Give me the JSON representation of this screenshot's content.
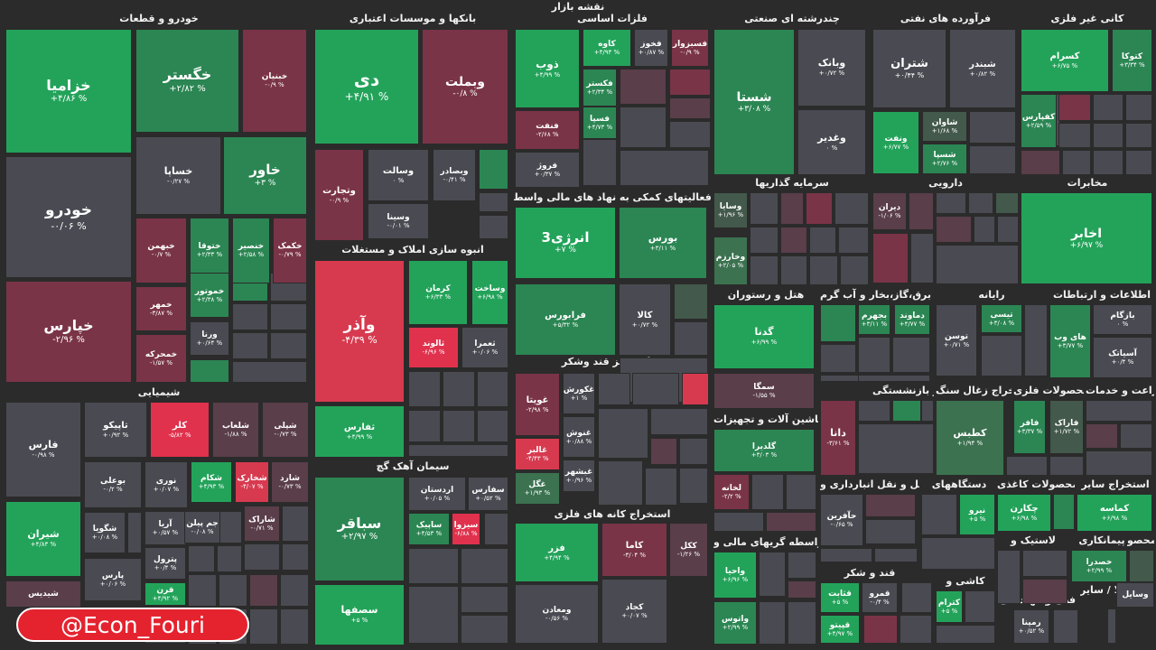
{
  "title": "نقشه بازار",
  "watermark": "@Econ_Fouri",
  "palette": {
    "sg": "#23a35a",
    "g": "#2b8653",
    "mg": "#3c7250",
    "dg": "#43594b",
    "n": "#4a4a52",
    "dr": "#5a3e4a",
    "r": "#7a3447",
    "sr": "#d73a4f",
    "br": "#e0324d"
  },
  "chart_data": {
    "type": "treemap",
    "title": "نقشه بازار",
    "sectors": [
      {
        "name": "خودرو و قطعات",
        "tiles": [
          {
            "n": "خزامیا",
            "v": "+۴/۸۶ %",
            "c": "sg"
          },
          {
            "n": "خگستر",
            "v": "+۲/۸۲ %",
            "c": "g"
          },
          {
            "n": "خبنیان",
            "v": "-۰/۹ %",
            "c": "r"
          },
          {
            "n": "خودرو",
            "v": "-۰/۰۶ %",
            "c": "n"
          },
          {
            "n": "خساپا",
            "v": "-۰/۲۷ %",
            "c": "n"
          },
          {
            "n": "خاور",
            "v": "+۳ %",
            "c": "g"
          },
          {
            "n": "خپارس",
            "v": "-۲/۹۶ %",
            "c": "r"
          },
          {
            "n": "خبهمن",
            "v": "-۰/۷ %",
            "c": "r"
          },
          {
            "n": "ختوقا",
            "v": "+۲/۳۳ %",
            "c": "g"
          },
          {
            "n": "خنصیر",
            "v": "+۲/۵۸ %",
            "c": "g"
          },
          {
            "n": "خکمک",
            "v": "-۰/۷۹ %",
            "c": "r"
          },
          {
            "n": "خمهر",
            "v": "-۳/۸۷ %",
            "c": "r"
          },
          {
            "n": "خموتور",
            "v": "+۲/۳۸ %",
            "c": "g"
          },
          {
            "n": "ورنا",
            "v": "+۰/۶۴ %",
            "c": "n"
          },
          {
            "n": "خمحرکه",
            "v": "-۱/۵۷ %",
            "c": "r"
          }
        ]
      },
      {
        "name": "بانکها و موسسات اعتباری",
        "tiles": [
          {
            "n": "دی",
            "v": "+۴/۹۱ %",
            "c": "sg"
          },
          {
            "n": "وبملت",
            "v": "-۰/۸ %",
            "c": "r"
          },
          {
            "n": "وتجارت",
            "v": "-۰/۹ %",
            "c": "r"
          },
          {
            "n": "وسالت",
            "v": "۰ %",
            "c": "n"
          },
          {
            "n": "وبصادر",
            "v": "-۰/۴۱ %",
            "c": "n"
          },
          {
            "n": "وسینا",
            "v": "-۰/۰۱ %",
            "c": "n"
          }
        ]
      },
      {
        "name": "انبوه سازی املاک و مستغلات",
        "tiles": [
          {
            "n": "وآذر",
            "v": "-۴/۳۹ %",
            "c": "sr"
          },
          {
            "n": "کرمان",
            "v": "+۶/۳۳ %",
            "c": "sg"
          },
          {
            "n": "وساخت",
            "v": "+۶/۹۸ %",
            "c": "sg"
          },
          {
            "n": "ثالوند",
            "v": "-۶/۹۶ %",
            "c": "br"
          },
          {
            "n": "ثعمرا",
            "v": "+۰/۰۶ %",
            "c": "n"
          },
          {
            "n": "ثفارس",
            "v": "+۴/۹۹ %",
            "c": "sg"
          }
        ]
      },
      {
        "name": "سیمان آهک گچ",
        "tiles": [
          {
            "n": "سباقر",
            "v": "+۲/۹۷ %",
            "c": "g"
          },
          {
            "n": "سصفها",
            "v": "+۵ %",
            "c": "sg"
          },
          {
            "n": "اردستان",
            "v": "+۰/۰۵ %",
            "c": "n"
          },
          {
            "n": "سفارس",
            "v": "+۰/۵۲ %",
            "c": "n"
          },
          {
            "n": "ساپیک",
            "v": "+۴/۵۳ %",
            "c": "g"
          },
          {
            "n": "سیزوا",
            "v": "-۶/۸۸ %",
            "c": "br"
          }
        ]
      },
      {
        "name": "فلزات اساسی",
        "tiles": [
          {
            "n": "ذوب",
            "v": "+۴/۹۹ %",
            "c": "sg"
          },
          {
            "n": "کاوه",
            "v": "+۴/۹۳ %",
            "c": "sg"
          },
          {
            "n": "فخوز",
            "v": "+۰/۸۷ %",
            "c": "n"
          },
          {
            "n": "فسبزوار",
            "v": "-۰/۹ %",
            "c": "r"
          },
          {
            "n": "فکستر",
            "v": "+۲/۳۴ %",
            "c": "g"
          },
          {
            "n": "فسپا",
            "v": "+۴/۷۳ %",
            "c": "g"
          },
          {
            "n": "فنفت",
            "v": "-۲/۶۸ %",
            "c": "r"
          },
          {
            "n": "فروژ",
            "v": "+۰/۳۷ %",
            "c": "n"
          }
        ]
      },
      {
        "name": "فعالیتهای کمکی به نهاد های مالی واسط",
        "tiles": [
          {
            "n": "انرژی3",
            "v": "+۷ %",
            "c": "sg"
          },
          {
            "n": "بورس",
            "v": "+۳/۱۱ %",
            "c": "g"
          },
          {
            "n": "فرابورس",
            "v": "+۵/۳۲ %",
            "c": "g"
          },
          {
            "n": "کالا",
            "v": "+۰/۷۲ %",
            "c": "n"
          }
        ]
      },
      {
        "name": "غذایی بجز قند وشکر",
        "tiles": [
          {
            "n": "غویتا",
            "v": "-۲/۹۸ %",
            "c": "r"
          },
          {
            "n": "غکورش",
            "v": "+۱ %",
            "c": "n"
          },
          {
            "n": "غنوش",
            "v": "+۰/۸۸ %",
            "c": "n"
          },
          {
            "n": "غالبر",
            "v": "-۴/۴۳ %",
            "c": "sr"
          },
          {
            "n": "غبشهر",
            "v": "+۰/۹۶ %",
            "c": "n"
          },
          {
            "n": "غگل",
            "v": "+۱/۹۳ %",
            "c": "mg"
          }
        ]
      },
      {
        "name": "استخراج کانه های فلزی",
        "tiles": [
          {
            "n": "فزر",
            "v": "+۴/۹۴ %",
            "c": "sg"
          },
          {
            "n": "کاما",
            "v": "-۳/۰۴ %",
            "c": "r"
          },
          {
            "n": "ککل",
            "v": "-۱/۲۶ %",
            "c": "dr"
          },
          {
            "n": "کجاد",
            "v": "+۰/۰۷ %",
            "c": "n"
          },
          {
            "n": "ومعادن",
            "v": "-۰/۵۶ %",
            "c": "n"
          }
        ]
      },
      {
        "name": "چندرشته ای صنعتی",
        "tiles": [
          {
            "n": "شستا",
            "v": "+۳/۰۸ %",
            "c": "g"
          },
          {
            "n": "وبانک",
            "v": "+۰/۷۲ %",
            "c": "n"
          },
          {
            "n": "وغدیر",
            "v": "۰ %",
            "c": "n"
          }
        ]
      },
      {
        "name": "فرآورده های نفتی",
        "tiles": [
          {
            "n": "شتران",
            "v": "+۰/۴۴ %",
            "c": "n"
          },
          {
            "n": "شبندر",
            "v": "+۰/۸۲ %",
            "c": "n"
          },
          {
            "n": "ونفت",
            "v": "+۶/۷۷ %",
            "c": "sg"
          },
          {
            "n": "شاوان",
            "v": "+۱/۶۸ %",
            "c": "dg"
          },
          {
            "n": "شسپا",
            "v": "+۲/۷۶ %",
            "c": "g"
          }
        ]
      },
      {
        "name": "کانی غیر فلزی",
        "tiles": [
          {
            "n": "کسرام",
            "v": "+۶/۷۵ %",
            "c": "sg"
          },
          {
            "n": "کتوکا",
            "v": "+۳/۳۴ %",
            "c": "g"
          },
          {
            "n": "کفپارس",
            "v": "+۲/۵۹ %",
            "c": "g"
          }
        ]
      },
      {
        "name": "سرمایه گذاریها",
        "tiles": [
          {
            "n": "وسایا",
            "v": "+۱/۹۶ %",
            "c": "dg"
          },
          {
            "n": "وخارزم",
            "v": "+۲/۰۵ %",
            "c": "mg"
          }
        ]
      },
      {
        "name": "دارویی",
        "tiles": [
          {
            "n": "دیران",
            "v": "-۱/۰۶ %",
            "c": "dr"
          }
        ]
      },
      {
        "name": "مخابرات",
        "tiles": [
          {
            "n": "اخابر",
            "v": "+۶/۹۷ %",
            "c": "sg"
          }
        ]
      },
      {
        "name": "هتل و رستوران",
        "tiles": [
          {
            "n": "گدنا",
            "v": "+۶/۹۹ %",
            "c": "sg"
          },
          {
            "n": "سمگا",
            "v": "-۱/۵۵ %",
            "c": "dr"
          }
        ]
      },
      {
        "name": "عرضه برق،گاز،بخار و آب گرم",
        "tiles": [
          {
            "n": "بجهرم",
            "v": "+۳/۱۱ %",
            "c": "g"
          },
          {
            "n": "دماوند",
            "v": "+۴/۷۷ %",
            "c": "g"
          }
        ]
      },
      {
        "name": "رایانه",
        "tiles": [
          {
            "n": "تیسی",
            "v": "+۳/۰۸ %",
            "c": "g"
          },
          {
            "n": "توسن",
            "v": "+۰/۷۱ %",
            "c": "n"
          }
        ]
      },
      {
        "name": "اطلاعات و ارتباطات",
        "tiles": [
          {
            "n": "های وب",
            "v": "+۳/۷۷ %",
            "c": "g"
          },
          {
            "n": "بازگام",
            "v": "۰ %",
            "c": "n"
          },
          {
            "n": "آسیاتک",
            "v": "+۰/۴ %",
            "c": "n"
          }
        ]
      },
      {
        "name": "ماشین آلات و تجهیزات",
        "tiles": [
          {
            "n": "گلدیرا",
            "v": "+۳/۰۳ %",
            "c": "g"
          },
          {
            "n": "لخانه",
            "v": "-۲/۲ %",
            "c": "r"
          }
        ]
      },
      {
        "name": "بیمه و بازنشستگی",
        "tiles": [
          {
            "n": "دانا",
            "v": "-۳/۶۱ %",
            "c": "r"
          }
        ]
      },
      {
        "name": "استخراج زغال سنگ",
        "tiles": [
          {
            "n": "کطبس",
            "v": "+۱/۹۴ %",
            "c": "mg"
          }
        ]
      },
      {
        "name": "محصولات فلزی",
        "tiles": [
          {
            "n": "فافر",
            "v": "+۳/۳۷ %",
            "c": "g"
          },
          {
            "n": "فاراک",
            "v": "+۱/۷۲ %",
            "c": "dg"
          }
        ]
      },
      {
        "name": "زراعت و خدمات",
        "tiles": []
      },
      {
        "name": "حمل و نقل انبارداری و",
        "tiles": [
          {
            "n": "حآفرین",
            "v": "-۰/۶۵ %",
            "c": "n"
          }
        ]
      },
      {
        "name": "دستگاههای",
        "tiles": [
          {
            "n": "نیرو",
            "v": "+۵ %",
            "c": "sg"
          }
        ]
      },
      {
        "name": "محصولات کاغذی",
        "tiles": [
          {
            "n": "چکارن",
            "v": "+۶/۹۸ %",
            "c": "sg"
          }
        ]
      },
      {
        "name": "استخراج سایر",
        "tiles": [
          {
            "n": "کماسه",
            "v": "+۶/۹۸ %",
            "c": "sg"
          }
        ]
      },
      {
        "name": "واسطه گریهای مالی و",
        "tiles": [
          {
            "n": "واحیا",
            "v": "+۶/۹۶ %",
            "c": "sg"
          },
          {
            "n": "واتوس",
            "v": "+۲/۹۹ %",
            "c": "g"
          }
        ]
      },
      {
        "name": "قند و شکر",
        "tiles": [
          {
            "n": "قثابت",
            "v": "+۵ %",
            "c": "sg"
          },
          {
            "n": "قمرو",
            "v": "-۰/۴ %",
            "c": "n"
          },
          {
            "n": "قپیتو",
            "v": "+۴/۹۷ %",
            "c": "sg"
          }
        ]
      },
      {
        "name": "کاشی و",
        "tiles": [
          {
            "n": "کترام",
            "v": "+۵ %",
            "c": "sg"
          }
        ]
      },
      {
        "name": "لاستیک و",
        "tiles": []
      },
      {
        "name": "پیمانکاری",
        "tiles": [
          {
            "n": "خصدرا",
            "v": "+۲/۹۹ %",
            "c": "g"
          }
        ]
      },
      {
        "name": "محصو",
        "tiles": []
      },
      {
        "name": "فنی و مهندسی",
        "tiles": [
          {
            "n": "رمپنا",
            "v": "+۰/۵۲ %",
            "c": "n"
          }
        ]
      },
      {
        "name": "شیمیایی",
        "tiles": [
          {
            "n": "فارس",
            "v": "-۰/۹۸ %",
            "c": "n"
          },
          {
            "n": "تاپیکو",
            "v": "+۰/۹۲ %",
            "c": "n"
          },
          {
            "n": "کلر",
            "v": "-۵/۸۲ %",
            "c": "br"
          },
          {
            "n": "شلعاب",
            "v": "-۱/۸۸ %",
            "c": "dr"
          },
          {
            "n": "شپلی",
            "v": "-۰/۷۳ %",
            "c": "dr"
          },
          {
            "n": "بوعلی",
            "v": "-۰/۲ %",
            "c": "n"
          },
          {
            "n": "نوری",
            "v": "+۰/۰۷ %",
            "c": "n"
          },
          {
            "n": "شکام",
            "v": "+۴/۹۳ %",
            "c": "sg"
          },
          {
            "n": "شخارک",
            "v": "-۴/۰۷ %",
            "c": "sr"
          },
          {
            "n": "شارد",
            "v": "-۰/۷۳ %",
            "c": "dr"
          },
          {
            "n": "شیران",
            "v": "+۴/۸۳ %",
            "c": "sg"
          },
          {
            "n": "شگویا",
            "v": "+۰/۰۸ %",
            "c": "n"
          },
          {
            "n": "آریا",
            "v": "+۰/۵۷ %",
            "c": "n"
          },
          {
            "n": "جم پیلن",
            "v": "-۰/۰۸ %",
            "c": "n"
          },
          {
            "n": "شاراک",
            "v": "-۰/۷۱ %",
            "c": "dr"
          },
          {
            "n": "پترول",
            "v": "+۰/۴ %",
            "c": "n"
          },
          {
            "n": "پارس",
            "v": "+۰/۰۶ %",
            "c": "n"
          },
          {
            "n": "قرن",
            "v": "+۴/۹۲ %",
            "c": "sg"
          },
          {
            "n": "شیدیس",
            "v": "",
            "c": "dr"
          }
        ]
      },
      {
        "name": "خرده / استخراج / منسو / فعالا / محصولا / سایر",
        "tiles": [
          {
            "n": "وسایل",
            "v": "",
            "c": "n"
          }
        ]
      }
    ]
  }
}
